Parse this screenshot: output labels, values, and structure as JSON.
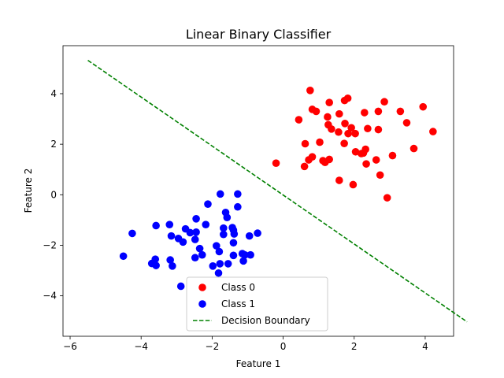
{
  "chart_data": {
    "type": "scatter",
    "title": "Linear Binary Classifier",
    "xlabel": "Feature 1",
    "ylabel": "Feature 2",
    "xlim": [
      -6.2,
      4.8
    ],
    "ylim": [
      -5.6,
      5.9
    ],
    "xticks": [
      -6,
      -4,
      -2,
      0,
      2,
      4
    ],
    "yticks": [
      -4,
      -2,
      0,
      2,
      4
    ],
    "grid": false,
    "legend_position": "bottom-center",
    "series": [
      {
        "name": "Class 0",
        "kind": "points",
        "color": "#ff0000",
        "points": [
          [
            0.76,
            4.13
          ],
          [
            1.82,
            3.82
          ],
          [
            2.85,
            3.68
          ],
          [
            3.94,
            3.48
          ],
          [
            1.3,
            3.65
          ],
          [
            1.73,
            3.73
          ],
          [
            0.82,
            3.38
          ],
          [
            0.93,
            3.3
          ],
          [
            3.3,
            3.3
          ],
          [
            2.29,
            3.25
          ],
          [
            2.68,
            3.3
          ],
          [
            1.25,
            3.08
          ],
          [
            1.58,
            3.2
          ],
          [
            0.44,
            2.97
          ],
          [
            1.27,
            2.77
          ],
          [
            1.74,
            2.82
          ],
          [
            3.48,
            2.85
          ],
          [
            1.36,
            2.6
          ],
          [
            1.92,
            2.65
          ],
          [
            2.38,
            2.62
          ],
          [
            2.68,
            2.58
          ],
          [
            1.56,
            2.48
          ],
          [
            1.83,
            2.42
          ],
          [
            2.03,
            2.42
          ],
          [
            4.22,
            2.5
          ],
          [
            0.62,
            2.02
          ],
          [
            1.03,
            2.08
          ],
          [
            1.72,
            2.03
          ],
          [
            3.68,
            1.83
          ],
          [
            2.04,
            1.7
          ],
          [
            2.26,
            1.65
          ],
          [
            2.32,
            1.8
          ],
          [
            2.2,
            1.63
          ],
          [
            3.08,
            1.55
          ],
          [
            0.72,
            1.38
          ],
          [
            0.82,
            1.5
          ],
          [
            1.12,
            1.35
          ],
          [
            1.18,
            1.28
          ],
          [
            1.3,
            1.4
          ],
          [
            2.62,
            1.38
          ],
          [
            2.34,
            1.22
          ],
          [
            -0.2,
            1.25
          ],
          [
            0.6,
            1.12
          ],
          [
            2.73,
            0.78
          ],
          [
            1.58,
            0.57
          ],
          [
            1.97,
            0.4
          ],
          [
            2.93,
            -0.12
          ]
        ]
      },
      {
        "name": "Class 1",
        "kind": "points",
        "color": "#0000ff",
        "points": [
          [
            -1.77,
            0.03
          ],
          [
            -1.28,
            0.03
          ],
          [
            -2.12,
            -0.37
          ],
          [
            -1.62,
            -0.7
          ],
          [
            -1.28,
            -0.48
          ],
          [
            -1.58,
            -0.9
          ],
          [
            -2.45,
            -0.95
          ],
          [
            -3.58,
            -1.22
          ],
          [
            -3.2,
            -1.18
          ],
          [
            -2.75,
            -1.35
          ],
          [
            -2.18,
            -1.18
          ],
          [
            -1.68,
            -1.32
          ],
          [
            -1.43,
            -1.3
          ],
          [
            -1.4,
            -1.4
          ],
          [
            -4.25,
            -1.53
          ],
          [
            -3.15,
            -1.63
          ],
          [
            -2.62,
            -1.5
          ],
          [
            -2.45,
            -1.48
          ],
          [
            -1.68,
            -1.57
          ],
          [
            -1.38,
            -1.55
          ],
          [
            -0.95,
            -1.63
          ],
          [
            -0.72,
            -1.52
          ],
          [
            -2.95,
            -1.73
          ],
          [
            -2.82,
            -1.87
          ],
          [
            -2.48,
            -1.77
          ],
          [
            -1.88,
            -2.02
          ],
          [
            -1.4,
            -1.9
          ],
          [
            -2.35,
            -2.13
          ],
          [
            -1.8,
            -2.25
          ],
          [
            -1.4,
            -2.4
          ],
          [
            -1.15,
            -2.33
          ],
          [
            -2.48,
            -2.49
          ],
          [
            -2.28,
            -2.38
          ],
          [
            -1.08,
            -2.38
          ],
          [
            -0.92,
            -2.38
          ],
          [
            -4.5,
            -2.43
          ],
          [
            -3.7,
            -2.72
          ],
          [
            -3.6,
            -2.55
          ],
          [
            -3.58,
            -2.8
          ],
          [
            -3.18,
            -2.58
          ],
          [
            -3.12,
            -2.82
          ],
          [
            -1.98,
            -2.82
          ],
          [
            -1.78,
            -2.73
          ],
          [
            -1.55,
            -2.73
          ],
          [
            -1.12,
            -2.62
          ],
          [
            -1.82,
            -3.1
          ],
          [
            -2.88,
            -3.62
          ]
        ]
      },
      {
        "name": "Decision Boundary",
        "kind": "line",
        "color": "#008000",
        "dash": "dashed",
        "points": [
          [
            -5.5,
            5.32
          ],
          [
            5.18,
            -5.03
          ]
        ]
      }
    ]
  }
}
